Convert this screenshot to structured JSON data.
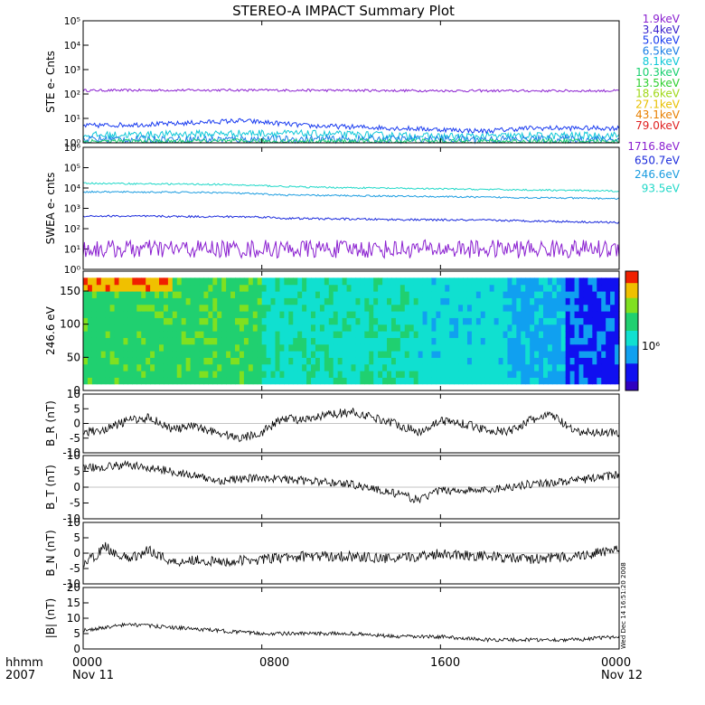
{
  "title": "STEREO-A IMPACT Summary Plot",
  "footer": {
    "hhmm": "hhmm",
    "year": "2007",
    "start_time": "0000",
    "start_date": "Nov 11",
    "end_time": "0000",
    "end_date": "Nov 12",
    "mid_ticks": [
      "0800",
      "1600"
    ]
  },
  "timestamp_vertical": "Wed Dec 14 16:51:20 2008",
  "colors": {
    "trace": "#000000",
    "ste_legend": [
      "#8a1fd0",
      "#3a22cc",
      "#1a3cf0",
      "#1a7fe6",
      "#10c8d8",
      "#18d070",
      "#30d030",
      "#a0d818",
      "#e8c000",
      "#e88000",
      "#e02020"
    ],
    "swea_legend": [
      "#8a1fd0",
      "#1a2adc",
      "#1a9ce0",
      "#20d8c8"
    ]
  },
  "chart_data": [
    {
      "panel": "ste",
      "type": "line",
      "ylabel": "STE e- Cnts",
      "yscale": "log",
      "ylim": [
        1,
        100000
      ],
      "ytick_labels": [
        "10⁰",
        "10¹",
        "10²",
        "10³",
        "10⁴",
        "10⁵"
      ],
      "x_hours": [
        0,
        24
      ],
      "legend": [
        "1.9keV",
        "3.4keV",
        "5.0keV",
        "6.5keV",
        "8.1keV",
        "10.3keV",
        "13.5keV",
        "18.6keV",
        "27.1keV",
        "43.1keV",
        "79.0keV"
      ],
      "series": [
        {
          "level": 140,
          "noise": 0.05,
          "points": [
            [
              0,
              140
            ],
            [
              6,
              145
            ],
            [
              12,
              140
            ],
            [
              18,
              135
            ],
            [
              24,
              135
            ]
          ]
        },
        {
          "level": 5.5,
          "noise": 0.1,
          "points": [
            [
              0,
              5
            ],
            [
              4,
              6
            ],
            [
              7,
              8
            ],
            [
              10,
              5
            ],
            [
              14,
              4
            ],
            [
              18,
              3
            ],
            [
              20,
              4
            ],
            [
              24,
              4
            ]
          ]
        },
        {
          "level": 2.0,
          "noise": 0.15,
          "points": [
            [
              0,
              2
            ],
            [
              8,
              2.5
            ],
            [
              16,
              1.8
            ],
            [
              24,
              2
            ]
          ]
        },
        {
          "level": 1.4,
          "noise": 0.15,
          "points": [
            [
              0,
              1.4
            ],
            [
              24,
              1.4
            ]
          ]
        },
        {
          "level": 1.15,
          "noise": 0.1,
          "points": [
            [
              0,
              1.15
            ],
            [
              24,
              1.15
            ]
          ]
        }
      ]
    },
    {
      "panel": "swea",
      "type": "line",
      "ylabel": "SWEA e- cnts",
      "yscale": "log",
      "ylim": [
        1,
        1000000
      ],
      "ytick_labels": [
        "10⁰",
        "10¹",
        "10²",
        "10³",
        "10⁴",
        "10⁵",
        "10⁶"
      ],
      "x_hours": [
        0,
        24
      ],
      "legend": [
        "1716.8eV",
        "650.7eV",
        "246.6eV",
        "93.5eV"
      ],
      "series": [
        {
          "energy": "1716.8eV",
          "points": [
            [
              0,
              10
            ],
            [
              24,
              10
            ]
          ],
          "noise": 0.45
        },
        {
          "energy": "650.7eV",
          "points": [
            [
              0,
              420
            ],
            [
              8,
              380
            ],
            [
              9,
              320
            ],
            [
              14,
              280
            ],
            [
              18,
              260
            ],
            [
              24,
              200
            ]
          ],
          "noise": 0.05
        },
        {
          "energy": "246.6eV",
          "points": [
            [
              0,
              6500
            ],
            [
              6,
              6000
            ],
            [
              9,
              4500
            ],
            [
              14,
              4000
            ],
            [
              18,
              3500
            ],
            [
              24,
              3000
            ]
          ],
          "noise": 0.04
        },
        {
          "energy": "93.5eV",
          "points": [
            [
              0,
              17000
            ],
            [
              6,
              15000
            ],
            [
              10,
              11000
            ],
            [
              16,
              9000
            ],
            [
              24,
              7000
            ]
          ],
          "noise": 0.04
        }
      ]
    },
    {
      "panel": "spectrogram",
      "type": "heatmap",
      "ylabel": "246.6 eV",
      "ylim": [
        0,
        180
      ],
      "yticks": [
        0,
        50,
        100,
        150
      ],
      "colorbar_label": "10⁶",
      "x_hours": [
        0,
        24
      ],
      "y_range_deg": [
        10,
        170
      ],
      "segments": [
        {
          "from": 0,
          "to": 8,
          "level": 0.62
        },
        {
          "from": 8,
          "to": 15,
          "level": 0.5
        },
        {
          "from": 15,
          "to": 19,
          "level": 0.42
        },
        {
          "from": 19,
          "to": 21.5,
          "level": 0.35
        },
        {
          "from": 21.5,
          "to": 24,
          "level": 0.2
        }
      ]
    },
    {
      "panel": "br",
      "type": "line",
      "ylabel": "B_R (nT)",
      "ylim": [
        -10,
        10
      ],
      "yticks": [
        -10,
        -5,
        0,
        5,
        10
      ],
      "x_hours": [
        0,
        24
      ],
      "points": [
        [
          0,
          -3
        ],
        [
          1,
          -2
        ],
        [
          2,
          1
        ],
        [
          3,
          2
        ],
        [
          4,
          -2
        ],
        [
          5,
          -1
        ],
        [
          6,
          -3
        ],
        [
          7,
          -5
        ],
        [
          8,
          -3
        ],
        [
          9,
          2
        ],
        [
          10,
          1
        ],
        [
          11,
          3
        ],
        [
          12,
          4
        ],
        [
          13,
          2
        ],
        [
          14,
          0
        ],
        [
          15,
          -3
        ],
        [
          16,
          1
        ],
        [
          17,
          0
        ],
        [
          18,
          -2
        ],
        [
          19,
          -3
        ],
        [
          20,
          1
        ],
        [
          21,
          3
        ],
        [
          22,
          -3
        ],
        [
          23,
          -3
        ],
        [
          24,
          -3
        ]
      ],
      "noise": 1.5
    },
    {
      "panel": "bt",
      "type": "line",
      "ylabel": "B_T (nT)",
      "ylim": [
        -10,
        10
      ],
      "yticks": [
        -10,
        -5,
        0,
        5,
        10
      ],
      "x_hours": [
        0,
        24
      ],
      "points": [
        [
          0,
          6
        ],
        [
          2,
          7
        ],
        [
          4,
          5
        ],
        [
          6,
          2
        ],
        [
          8,
          3
        ],
        [
          10,
          2
        ],
        [
          12,
          1
        ],
        [
          14,
          -2
        ],
        [
          15,
          -4
        ],
        [
          16,
          -1
        ],
        [
          18,
          -1
        ],
        [
          20,
          1
        ],
        [
          22,
          2
        ],
        [
          24,
          4
        ]
      ],
      "noise": 1.3
    },
    {
      "panel": "bn",
      "type": "line",
      "ylabel": "B_N (nT)",
      "ylim": [
        -10,
        10
      ],
      "yticks": [
        -10,
        -5,
        0,
        5,
        10
      ],
      "x_hours": [
        0,
        24
      ],
      "points": [
        [
          0,
          -4
        ],
        [
          1,
          2
        ],
        [
          2,
          -2
        ],
        [
          3,
          1
        ],
        [
          4,
          -3
        ],
        [
          5,
          -2
        ],
        [
          6,
          -3
        ],
        [
          8,
          -2
        ],
        [
          10,
          -1
        ],
        [
          12,
          -1
        ],
        [
          14,
          -2
        ],
        [
          16,
          0
        ],
        [
          18,
          -1
        ],
        [
          20,
          -2
        ],
        [
          22,
          -1
        ],
        [
          24,
          1
        ]
      ],
      "noise": 1.7
    },
    {
      "panel": "bmag",
      "type": "line",
      "ylabel": "|B| (nT)",
      "ylim": [
        0,
        20
      ],
      "yticks": [
        0,
        5,
        10,
        15,
        20
      ],
      "x_hours": [
        0,
        24
      ],
      "points": [
        [
          0,
          6
        ],
        [
          2,
          8
        ],
        [
          4,
          7
        ],
        [
          6,
          6
        ],
        [
          8,
          5
        ],
        [
          10,
          5
        ],
        [
          12,
          5
        ],
        [
          14,
          4
        ],
        [
          16,
          4
        ],
        [
          18,
          3
        ],
        [
          20,
          3
        ],
        [
          22,
          3
        ],
        [
          24,
          4
        ]
      ],
      "noise": 0.6
    }
  ]
}
